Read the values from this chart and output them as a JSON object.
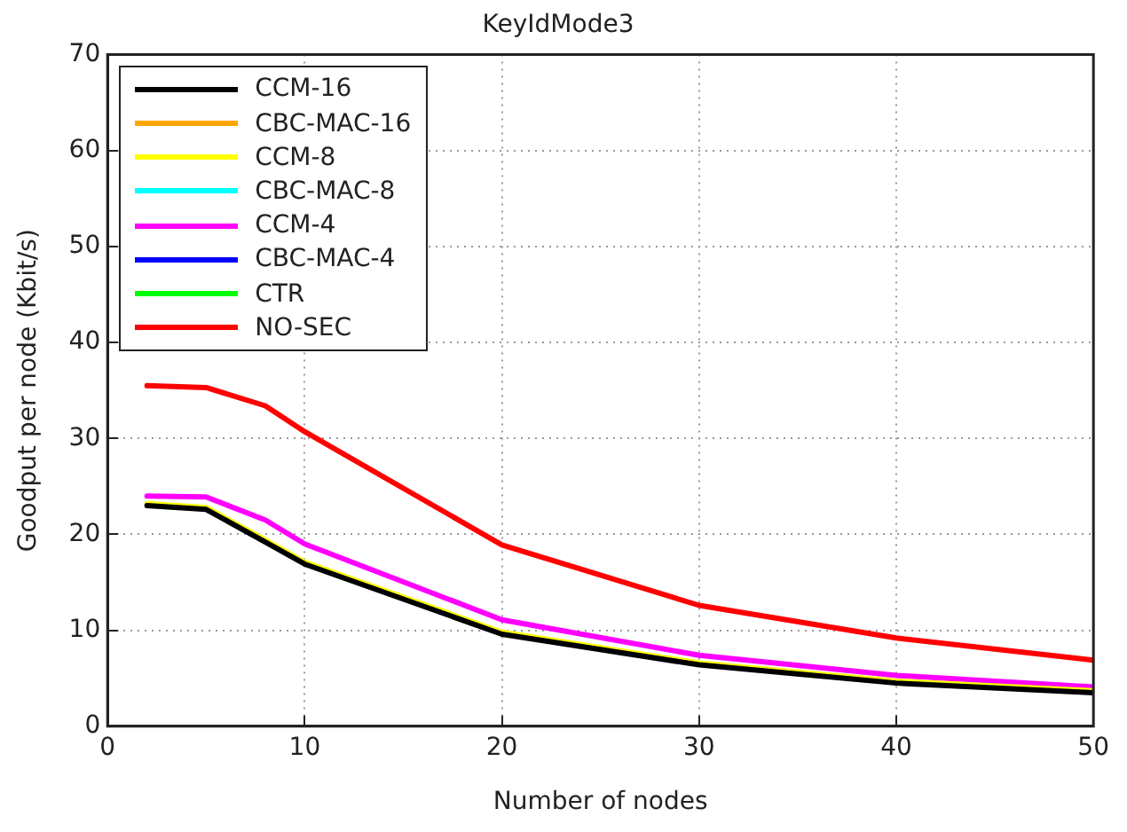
{
  "chart_data": {
    "type": "line",
    "title": "KeyIdMode3",
    "xlabel": "Number of nodes",
    "ylabel": "Goodput per node (Kbit/s)",
    "x": [
      2,
      5,
      8,
      10,
      20,
      30,
      40,
      50
    ],
    "xlim": [
      0,
      50
    ],
    "xticks": [
      0,
      10,
      20,
      30,
      40,
      50
    ],
    "ylim": [
      0,
      70
    ],
    "yticks": [
      0,
      10,
      20,
      30,
      40,
      50,
      60,
      70
    ],
    "grid": true,
    "legend": "top left",
    "marker": "none",
    "line_style": "solid",
    "series": [
      {
        "name": "CCM-16",
        "color": "#000000",
        "values": [
          23.0,
          22.6,
          19.2,
          16.9,
          9.6,
          6.4,
          4.5,
          3.5
        ]
      },
      {
        "name": "CBC-MAC-16",
        "color": "#ffa500",
        "values": [
          null,
          null,
          null,
          null,
          null,
          null,
          null,
          null
        ]
      },
      {
        "name": "CCM-8",
        "color": "#ffff00",
        "values": [
          23.2,
          22.8,
          19.4,
          17.1,
          9.8,
          6.6,
          4.7,
          3.7
        ]
      },
      {
        "name": "CBC-MAC-8",
        "color": "#00ffff",
        "values": [
          null,
          null,
          null,
          null,
          null,
          null,
          null,
          null
        ]
      },
      {
        "name": "CCM-4",
        "color": "#ff00ff",
        "values": [
          24.0,
          23.9,
          21.5,
          19.0,
          11.1,
          7.4,
          5.3,
          4.1
        ]
      },
      {
        "name": "CBC-MAC-4",
        "color": "#0000ff",
        "values": [
          null,
          null,
          null,
          null,
          null,
          null,
          null,
          null
        ]
      },
      {
        "name": "CTR",
        "color": "#00ff00",
        "values": [
          null,
          null,
          null,
          null,
          null,
          null,
          null,
          null
        ]
      },
      {
        "name": "NO-SEC",
        "color": "#ff0000",
        "values": [
          35.5,
          35.3,
          33.4,
          30.7,
          18.9,
          12.6,
          9.2,
          6.9
        ]
      }
    ]
  }
}
